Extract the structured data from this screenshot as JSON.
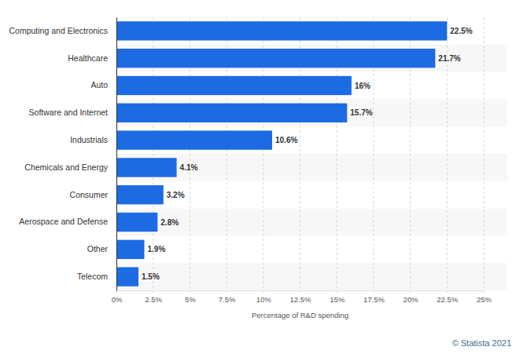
{
  "chart_data": {
    "type": "bar",
    "orientation": "horizontal",
    "categories": [
      "Computing and Electronics",
      "Healthcare",
      "Auto",
      "Software and Internet",
      "Industrials",
      "Chemicals and Energy",
      "Consumer",
      "Aerospace and Defense",
      "Other",
      "Telecom"
    ],
    "values": [
      22.5,
      21.7,
      16,
      15.7,
      10.6,
      4.1,
      3.2,
      2.8,
      1.9,
      1.5
    ],
    "value_labels": [
      "22.5%",
      "21.7%",
      "16%",
      "15.7%",
      "10.6%",
      "4.1%",
      "3.2%",
      "2.8%",
      "1.9%",
      "1.5%"
    ],
    "color": "#1c6be3",
    "xlabel": "Percentage of R&D spending",
    "xlim": [
      0,
      25
    ],
    "xticks": [
      {
        "value": 0,
        "label": "0%"
      },
      {
        "value": 2.5,
        "label": "2.5%"
      },
      {
        "value": 5,
        "label": "5%"
      },
      {
        "value": 7.5,
        "label": "7.5%"
      },
      {
        "value": 10,
        "label": "10%"
      },
      {
        "value": 12.5,
        "label": "12.5%"
      },
      {
        "value": 15,
        "label": "15%"
      },
      {
        "value": 17.5,
        "label": "17.5%"
      },
      {
        "value": 20,
        "label": "20%"
      },
      {
        "value": 22.5,
        "label": "22.5%"
      },
      {
        "value": 25,
        "label": "25%"
      }
    ],
    "grid": true,
    "data_labels": true,
    "source": "© Statista 2021"
  }
}
